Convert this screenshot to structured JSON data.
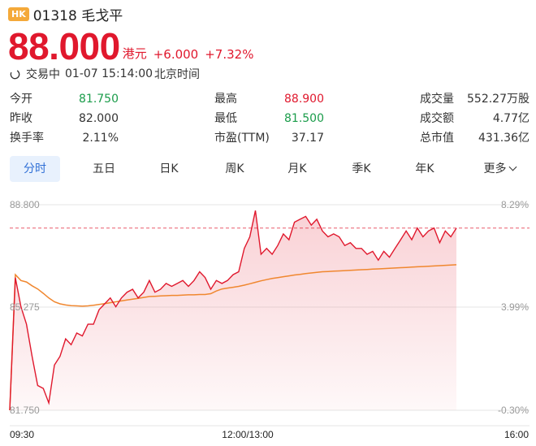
{
  "header": {
    "market_badge": "HK",
    "stock_name": "01318 毛戈平"
  },
  "quote": {
    "price": "88.000",
    "currency": "港元",
    "change": "+6.000",
    "change_pct": "+7.32%",
    "status": "交易中",
    "datetime": "01-07 15:14:00",
    "timezone": "北京时间"
  },
  "stats": [
    [
      {
        "label": "今开",
        "value": "81.750"
      },
      {
        "label": "最高",
        "value": "88.900"
      },
      {
        "label": "成交量",
        "value": "552.27万股"
      }
    ],
    [
      {
        "label": "昨收",
        "value": "82.000"
      },
      {
        "label": "最低",
        "value": "81.500"
      },
      {
        "label": "成交额",
        "value": "4.77亿"
      }
    ],
    [
      {
        "label": "换手率",
        "value": "2.11%"
      },
      {
        "label": "市盈(TTM)",
        "value": "37.17"
      },
      {
        "label": "总市值",
        "value": "431.36亿"
      }
    ]
  ],
  "tabs": [
    "分时",
    "五日",
    "日K",
    "周K",
    "月K",
    "季K",
    "年K",
    "更多"
  ],
  "active_tab": "分时",
  "colors": {
    "up": "#e0182d",
    "down": "#1a9c4a",
    "avg_line": "#f0872f",
    "active_tab_bg": "#e8f1fd",
    "active_tab_text": "#2f6fd6",
    "badge": "#f4a93a"
  },
  "chart_data": {
    "type": "line",
    "y_axis_left": [
      "88.800",
      "85.275",
      "81.750"
    ],
    "y_axis_right": [
      "8.29%",
      "3.99%",
      "-0.30%"
    ],
    "x_axis": [
      "09:30",
      "12:00/13:00",
      "16:00"
    ],
    "ylim": [
      81.75,
      88.8
    ],
    "prev_close": 82.0,
    "series": [
      {
        "values": [
          81.75,
          86.3,
          85.3,
          84.7,
          83.6,
          82.6,
          82.5,
          82.0,
          83.3,
          83.6,
          84.2,
          84.0,
          84.4,
          84.3,
          84.7,
          84.7,
          85.2,
          85.4,
          85.6,
          85.3,
          85.6,
          85.8,
          85.9,
          85.6,
          85.8,
          86.2,
          85.8,
          85.9,
          86.1,
          86.0,
          86.1,
          86.2,
          86.0,
          86.2,
          86.5,
          86.3,
          85.9,
          86.2,
          86.1,
          86.2,
          86.4,
          86.5,
          87.3,
          87.7,
          88.6,
          87.1,
          87.3,
          87.1,
          87.4,
          87.8,
          87.6,
          88.2,
          88.3,
          88.4,
          88.1,
          88.3,
          87.9,
          87.7,
          87.8,
          87.7,
          87.4,
          87.5,
          87.3,
          87.3,
          87.1,
          87.2,
          86.9,
          87.2,
          87.0,
          87.3,
          87.6,
          87.9,
          87.6,
          88.0,
          87.7,
          87.9,
          88.0,
          87.5,
          87.9,
          87.7,
          88.0
        ]
      },
      {
        "values": [
          81.75,
          86.4,
          86.2,
          86.15,
          86.02,
          85.91,
          85.76,
          85.6,
          85.47,
          85.4,
          85.36,
          85.34,
          85.33,
          85.32,
          85.33,
          85.35,
          85.38,
          85.41,
          85.44,
          85.47,
          85.5,
          85.53,
          85.56,
          85.59,
          85.62,
          85.65,
          85.66,
          85.67,
          85.68,
          85.69,
          85.69,
          85.7,
          85.71,
          85.71,
          85.72,
          85.72,
          85.75,
          85.84,
          85.91,
          85.94,
          85.97,
          86.0,
          86.04,
          86.09,
          86.14,
          86.19,
          86.23,
          86.27,
          86.3,
          86.33,
          86.36,
          86.39,
          86.41,
          86.44,
          86.46,
          86.48,
          86.5,
          86.51,
          86.52,
          86.53,
          86.54,
          86.55,
          86.56,
          86.57,
          86.58,
          86.59,
          86.6,
          86.61,
          86.62,
          86.63,
          86.64,
          86.65,
          86.66,
          86.67,
          86.68,
          86.69,
          86.7,
          86.71,
          86.72,
          86.73,
          86.74
        ]
      }
    ]
  }
}
